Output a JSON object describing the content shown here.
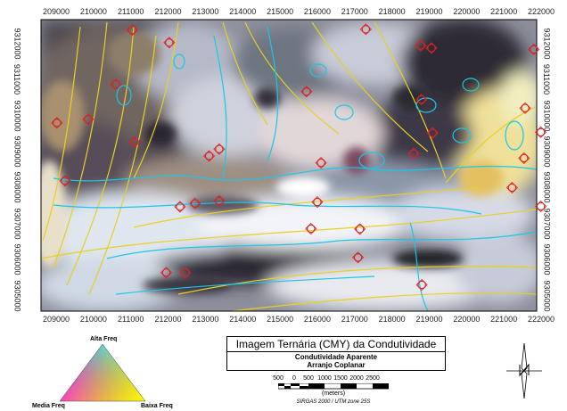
{
  "map": {
    "x_ticks": [
      "209000",
      "210000",
      "211000",
      "212000",
      "213000",
      "214000",
      "215000",
      "216000",
      "217000",
      "218000",
      "219000",
      "220000",
      "221000",
      "222000"
    ],
    "y_ticks": [
      "9312000",
      "9311000",
      "9310000",
      "9309000",
      "9308000",
      "9307000",
      "9306000",
      "9305000"
    ],
    "anomaly_markers": [
      {
        "e": 211040,
        "n": 9312380
      },
      {
        "e": 212030,
        "n": 9312030
      },
      {
        "e": 217300,
        "n": 9312400
      },
      {
        "e": 218770,
        "n": 9311950
      },
      {
        "e": 219060,
        "n": 9311880
      },
      {
        "e": 221800,
        "n": 9311840
      },
      {
        "e": 210600,
        "n": 9310870
      },
      {
        "e": 215710,
        "n": 9310670
      },
      {
        "e": 218790,
        "n": 9310450
      },
      {
        "e": 221570,
        "n": 9310210
      },
      {
        "e": 209020,
        "n": 9309800
      },
      {
        "e": 209860,
        "n": 9309900
      },
      {
        "e": 219090,
        "n": 9309520
      },
      {
        "e": 221990,
        "n": 9309540
      },
      {
        "e": 211100,
        "n": 9309270
      },
      {
        "e": 213100,
        "n": 9308880
      },
      {
        "e": 213370,
        "n": 9309070
      },
      {
        "e": 218580,
        "n": 9308950
      },
      {
        "e": 216100,
        "n": 9308690
      },
      {
        "e": 221540,
        "n": 9308820
      },
      {
        "e": 209240,
        "n": 9308190
      },
      {
        "e": 221220,
        "n": 9308000
      },
      {
        "e": 212320,
        "n": 9307470
      },
      {
        "e": 212720,
        "n": 9307560
      },
      {
        "e": 213370,
        "n": 9307630
      },
      {
        "e": 216000,
        "n": 9307600
      },
      {
        "e": 221990,
        "n": 9307480
      },
      {
        "e": 215830,
        "n": 9306860
      },
      {
        "e": 217140,
        "n": 9306850
      },
      {
        "e": 211950,
        "n": 9305640
      },
      {
        "e": 212460,
        "n": 9305640
      },
      {
        "e": 217090,
        "n": 9306060
      },
      {
        "e": 218800,
        "n": 9305300
      }
    ]
  },
  "title_box": {
    "title": "Imagem Ternária (CMY) da Condutividade",
    "subtitle1": "Condutividade Aparente",
    "subtitle2": "Arranjo Coplanar"
  },
  "scale": {
    "labels": [
      "500",
      "0",
      "500",
      "1000",
      "1500",
      "2000",
      "2500"
    ],
    "unit": "(meters)",
    "projection": "SIRGAS 2000 / UTM zone 25S"
  },
  "legend_triangle": {
    "top_label": "Alta Freq",
    "left_label": "Media Freq",
    "right_label": "Baixa Freq"
  }
}
